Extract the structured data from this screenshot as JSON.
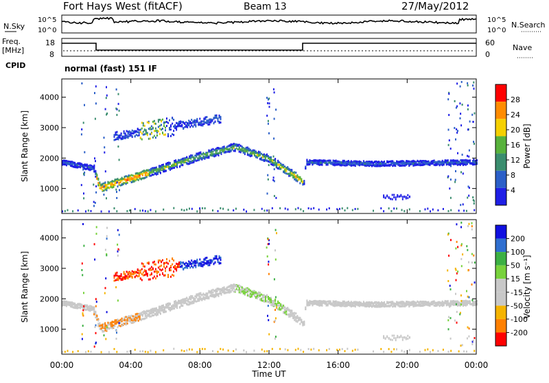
{
  "header": {
    "radar": "Fort Hays West (fitACF)",
    "beam": "Beam 13",
    "date": "27/May/2012"
  },
  "noise_panel": {
    "left_label": "N.Sky",
    "right_label": "N.Search",
    "left_ticks": [
      "10^5",
      "10^0"
    ],
    "right_ticks": [
      "10^5",
      "10^0"
    ]
  },
  "freq_panel": {
    "left_label_1": "Freq.",
    "left_label_2": "[MHz]",
    "right_label": "Nave",
    "left_ticks": [
      "18",
      "8"
    ],
    "right_ticks": [
      "60",
      "0"
    ],
    "cpid_label": "CPID",
    "cpid_value": "normal (fast) 151 IF"
  },
  "chart_data": [
    {
      "type": "heatmap",
      "name": "Power",
      "ylabel": "Slant Range [km]",
      "xlabel": "Time UT",
      "x_ticks": [
        "00:00",
        "04:00",
        "08:00",
        "12:00",
        "16:00",
        "20:00",
        "00:00"
      ],
      "y_ticks": [
        "1000",
        "2000",
        "3000",
        "4000"
      ],
      "ylim": [
        180,
        4600
      ],
      "xlim_hours": [
        0,
        24
      ],
      "colorbar": {
        "label": "Power [dB]",
        "ticks": [
          "4",
          "8",
          "12",
          "16",
          "20",
          "24",
          "28"
        ],
        "colors": [
          "#1f1fe6",
          "#2b5fc8",
          "#3a8d6e",
          "#58b23c",
          "#f5d000",
          "#ff8c00",
          "#ff0000"
        ]
      },
      "features": [
        {
          "label": "main echo band",
          "points_hours_km": [
            [
              0,
              1850
            ],
            [
              1.8,
              1650
            ],
            [
              2.2,
              1000
            ],
            [
              5,
              1500
            ],
            [
              8,
              2050
            ],
            [
              10,
              2350
            ],
            [
              12,
              1950
            ],
            [
              14,
              1200
            ],
            [
              14.1,
              1850
            ],
            [
              18,
              1800
            ],
            [
              24,
              1850
            ]
          ]
        },
        {
          "label": "upper band",
          "points_hours_km": [
            [
              3,
              2700
            ],
            [
              6,
              3050
            ],
            [
              9,
              3300
            ]
          ]
        },
        {
          "label": "ground scatter",
          "points_hours_km": [
            [
              6,
              280
            ],
            [
              12,
              300
            ],
            [
              20,
              250
            ]
          ]
        }
      ]
    },
    {
      "type": "heatmap",
      "name": "Velocity",
      "ylabel": "Slant Range [km]",
      "xlabel": "Time UT",
      "x_ticks": [
        "00:00",
        "04:00",
        "08:00",
        "12:00",
        "16:00",
        "20:00",
        "00:00"
      ],
      "y_ticks": [
        "1000",
        "2000",
        "3000",
        "4000"
      ],
      "ylim": [
        180,
        4600
      ],
      "xlim_hours": [
        0,
        24
      ],
      "colorbar": {
        "label": "Velocity [m s⁻¹]",
        "ticks": [
          "200",
          "100",
          "50",
          "15",
          "-15",
          "-50",
          "-100",
          "-200"
        ],
        "colors": [
          "#1010e0",
          "#2f6fd0",
          "#3cb043",
          "#78d23c",
          "#c8c8c8",
          "#c8c8c8",
          "#f5b400",
          "#ff8000",
          "#ff0000"
        ]
      }
    }
  ],
  "x_axis": {
    "ticks": [
      "00:00",
      "04:00",
      "08:00",
      "12:00",
      "16:00",
      "20:00",
      "00:00"
    ],
    "label": "Time UT"
  }
}
